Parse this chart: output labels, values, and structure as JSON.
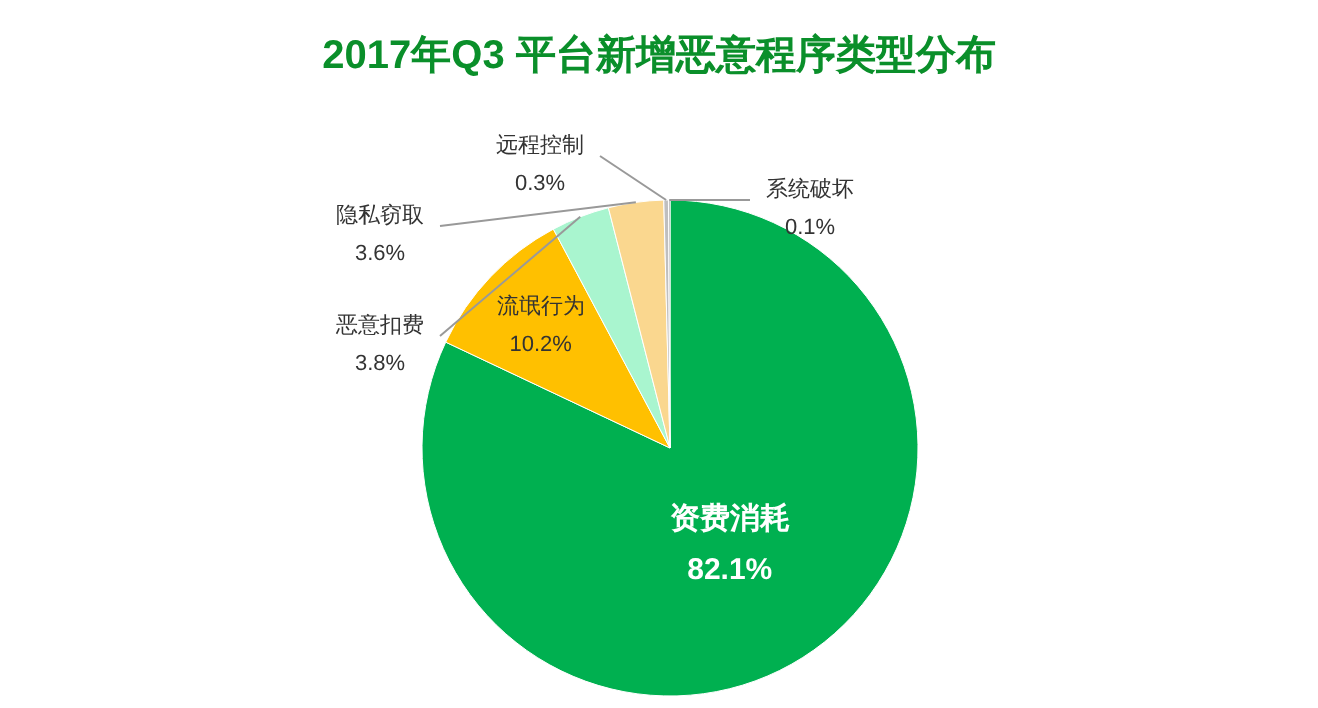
{
  "chart_data": {
    "type": "pie",
    "title": "2017年Q3 平台新增恶意程序类型分布",
    "categories": [
      "资费消耗",
      "流氓行为",
      "恶意扣费",
      "隐私窃取",
      "远程控制",
      "系统破坏"
    ],
    "values": [
      82.1,
      10.2,
      3.8,
      3.6,
      0.3,
      0.1
    ],
    "value_labels": [
      "82.1%",
      "10.2%",
      "3.8%",
      "3.6%",
      "0.3%",
      "0.1%"
    ],
    "colors": [
      "#00b050",
      "#ffc000",
      "#a9f5cf",
      "#fad78f",
      "#bfbfbf",
      "#8c8c8c"
    ]
  }
}
